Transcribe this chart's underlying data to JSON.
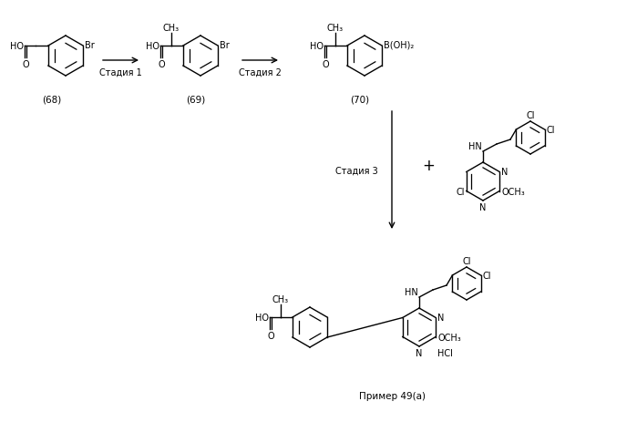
{
  "background_color": "#ffffff",
  "figure_width": 6.99,
  "figure_height": 4.64,
  "dpi": 100,
  "labels": {
    "compound_68": "(68)",
    "compound_69": "(69)",
    "compound_70": "(70)",
    "stage1": "Стадия 1",
    "stage2": "Стадия 2",
    "stage3": "Стадия 3",
    "example": "Пример 49(a)",
    "hcl": "HCl",
    "plus": "+",
    "ch3": "CH₃",
    "ho": "HO",
    "o": "O",
    "br": "Br",
    "boh2": "B(OH)₂",
    "cl": "Cl",
    "hn": "HN",
    "n": "N",
    "och3": "OCH₃"
  },
  "text_color": "#000000",
  "lw": 1.0,
  "fs": 7.5,
  "fs_small": 7.0
}
